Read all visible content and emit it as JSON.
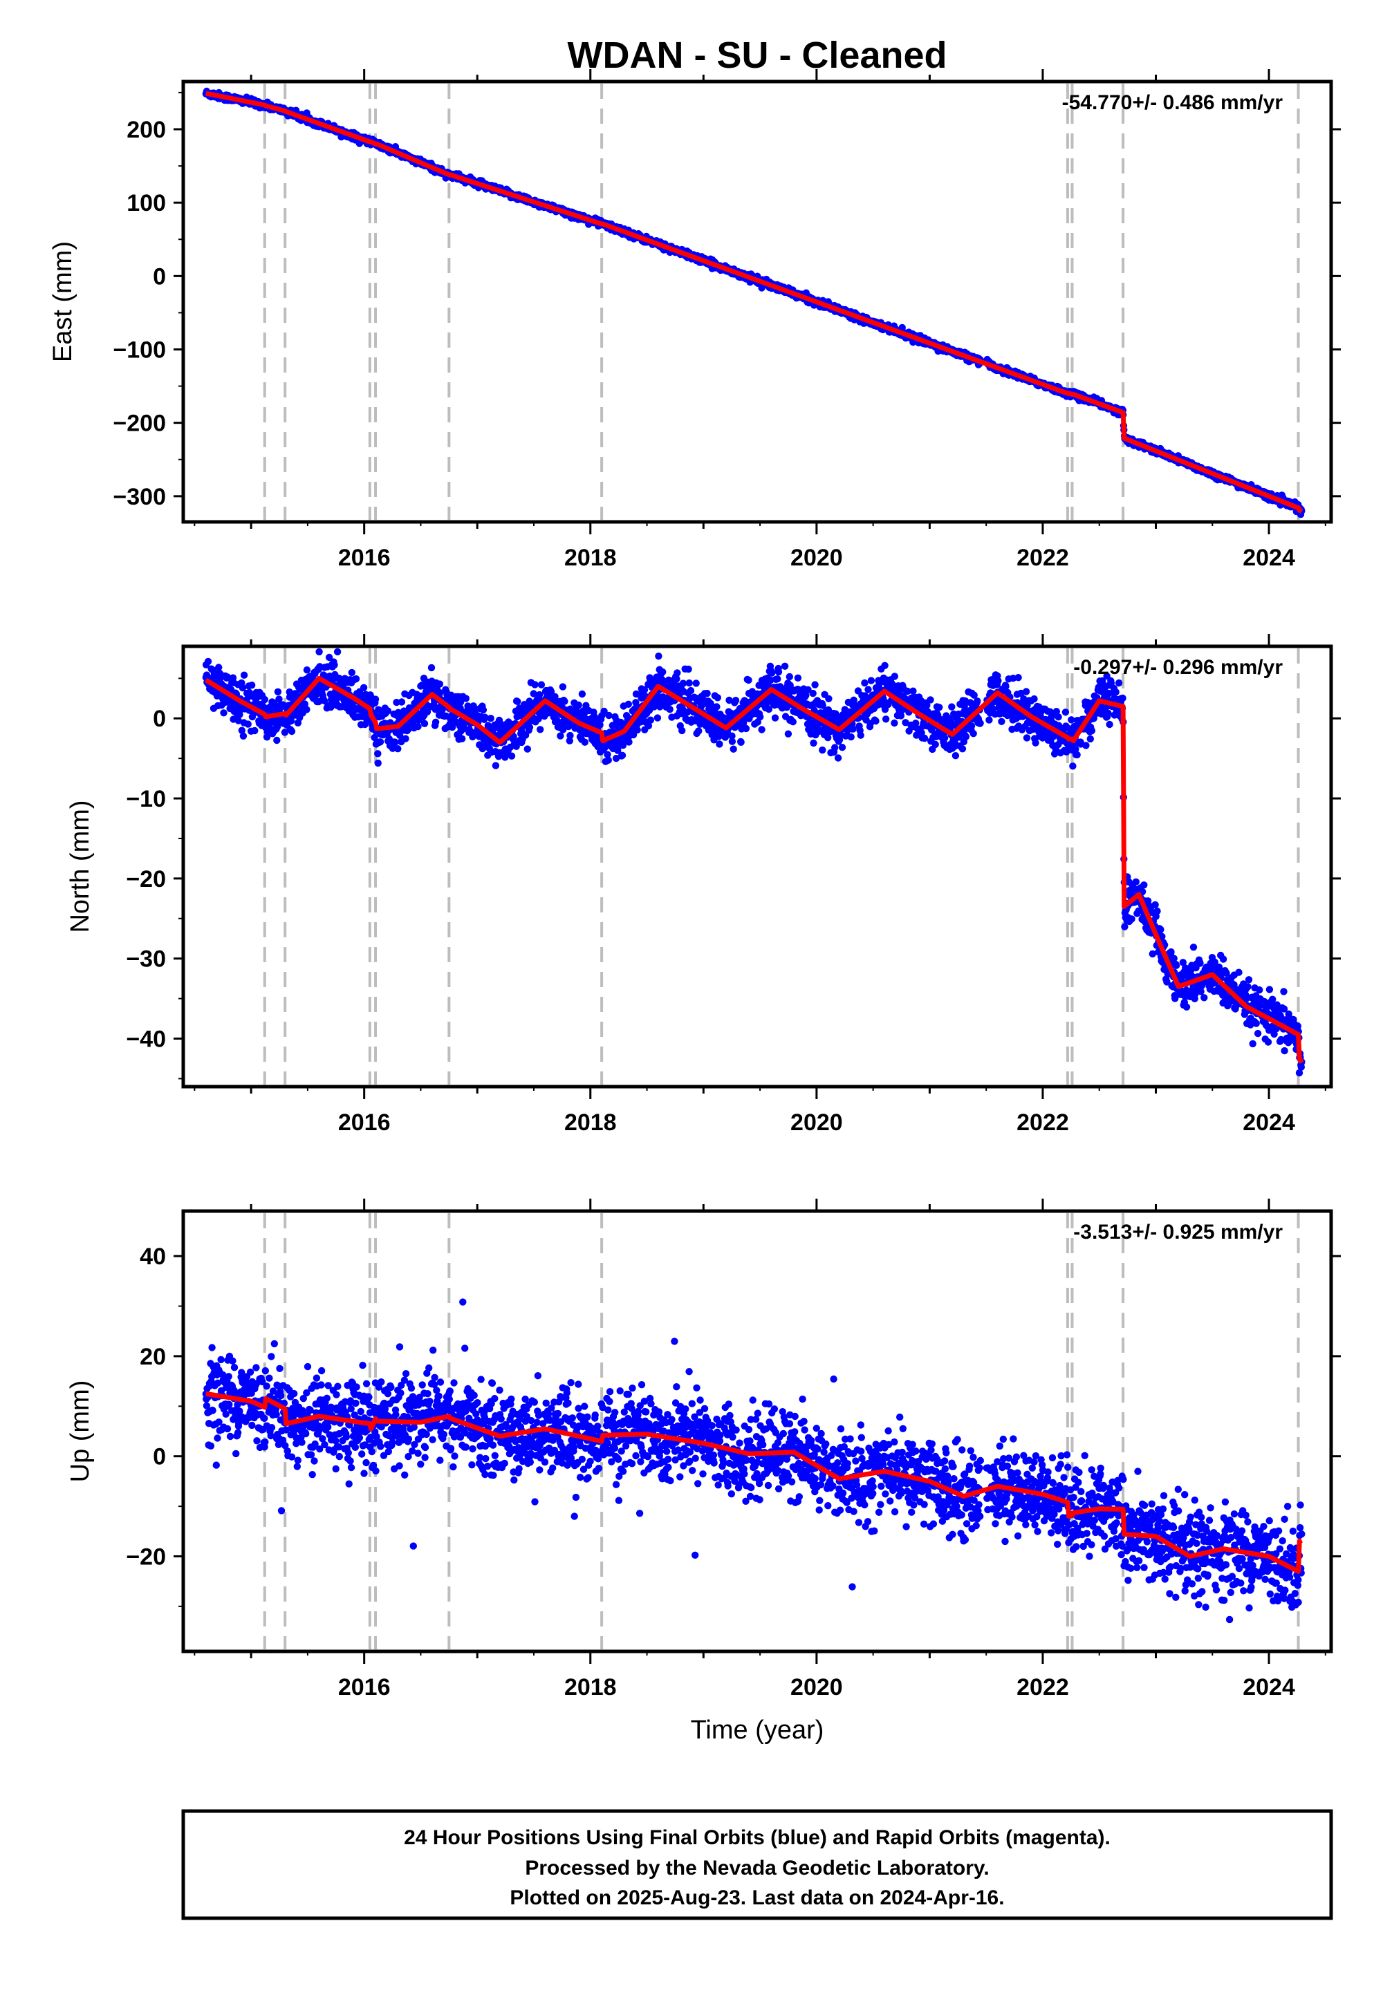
{
  "chart_data": {
    "type": "scatter",
    "title": "WDAN  - SU - Cleaned",
    "xlabel": "Time (year)",
    "xlim": [
      2014.4,
      2024.55
    ],
    "x_ticks": [
      "2016",
      "2018",
      "2020",
      "2022",
      "2024"
    ],
    "data_start": 2014.6,
    "data_end": 2024.29,
    "grid": false,
    "legend": "none",
    "point_color": "#0000ff",
    "fit_color": "#ff0000",
    "event_line_color": "#bdbdbd",
    "event_lines": [
      2015.12,
      2015.3,
      2016.05,
      2016.1,
      2016.75,
      2018.1,
      2022.22,
      2022.26,
      2022.71,
      2024.26
    ],
    "panels": [
      {
        "name": "east",
        "ylabel": "East (mm)",
        "ylim": [
          -335,
          265
        ],
        "y_ticks": [
          "200",
          "100",
          "0",
          "−100",
          "−200",
          "−300"
        ],
        "rate_label": "-54.770+/- 0.486 mm/yr",
        "scatter_sd": 2.2,
        "fit": {
          "x": [
            2014.6,
            2015.12,
            2015.13,
            2015.3,
            2015.31,
            2016.05,
            2016.06,
            2016.1,
            2016.11,
            2016.75,
            2016.76,
            2018.1,
            2018.11,
            2022.22,
            2022.23,
            2022.26,
            2022.27,
            2022.71,
            2022.72,
            2024.26,
            2024.27,
            2024.29
          ],
          "y": [
            249,
            233,
            232,
            225,
            224,
            183,
            183,
            180,
            180,
            138,
            138,
            71,
            71,
            -160,
            -160,
            -161,
            -161,
            -186,
            -221,
            -316,
            -319,
            -321
          ]
        }
      },
      {
        "name": "north",
        "ylabel": "North (mm)",
        "ylim": [
          -46,
          9
        ],
        "y_ticks": [
          "0",
          "−10",
          "−20",
          "−30",
          "−40"
        ],
        "rate_label": "-0.297+/- 0.296 mm/yr",
        "scatter_sd": 1.4,
        "fit": {
          "x": [
            2014.6,
            2014.9,
            2015.12,
            2015.13,
            2015.3,
            2015.31,
            2015.6,
            2015.9,
            2016.05,
            2016.06,
            2016.1,
            2016.11,
            2016.3,
            2016.6,
            2016.75,
            2016.76,
            2017.0,
            2017.2,
            2017.6,
            2017.9,
            2018.1,
            2018.11,
            2018.3,
            2018.6,
            2018.9,
            2019.2,
            2019.6,
            2019.9,
            2020.2,
            2020.6,
            2020.9,
            2021.2,
            2021.6,
            2021.9,
            2022.22,
            2022.23,
            2022.26,
            2022.27,
            2022.5,
            2022.71,
            2022.72,
            2022.85,
            2023.0,
            2023.2,
            2023.5,
            2023.8,
            2024.0,
            2024.26,
            2024.27,
            2024.29
          ],
          "y": [
            4.8,
            2.2,
            0.5,
            0.2,
            0.6,
            0.4,
            5.0,
            2.6,
            1.2,
            0.4,
            -0.5,
            -1.3,
            -1.0,
            3.0,
            1.4,
            1.2,
            -0.8,
            -3.0,
            2.2,
            -0.6,
            -1.8,
            -2.8,
            -1.6,
            4.0,
            1.4,
            -1.2,
            3.6,
            1.0,
            -1.4,
            3.4,
            0.6,
            -2.0,
            3.2,
            0.2,
            -2.4,
            -2.6,
            -2.6,
            -2.8,
            2.2,
            1.5,
            -23.5,
            -22.0,
            -27.0,
            -33.5,
            -32.0,
            -36.0,
            -37.5,
            -39.5,
            -42.5,
            -43.0
          ]
        }
      },
      {
        "name": "up",
        "ylabel": "Up (mm)",
        "ylim": [
          -39,
          49
        ],
        "y_ticks": [
          "40",
          "20",
          "0",
          "−20"
        ],
        "rate_label": "-3.513+/- 0.925 mm/yr",
        "scatter_sd": 4.2,
        "fit": {
          "x": [
            2014.6,
            2015.0,
            2015.12,
            2015.13,
            2015.3,
            2015.31,
            2015.6,
            2016.05,
            2016.06,
            2016.1,
            2016.11,
            2016.5,
            2016.75,
            2016.76,
            2017.2,
            2017.6,
            2018.1,
            2018.11,
            2018.5,
            2019.0,
            2019.4,
            2019.8,
            2020.2,
            2020.6,
            2021.0,
            2021.3,
            2021.6,
            2022.0,
            2022.22,
            2022.23,
            2022.26,
            2022.27,
            2022.5,
            2022.71,
            2022.72,
            2023.0,
            2023.3,
            2023.6,
            2024.0,
            2024.26,
            2024.27,
            2024.29
          ],
          "y": [
            12.5,
            11.0,
            9.8,
            11.5,
            9.5,
            6.5,
            8.0,
            6.5,
            5.5,
            7.5,
            7.0,
            6.8,
            8.0,
            7.6,
            4.0,
            5.5,
            3.0,
            4.2,
            4.4,
            2.6,
            0.5,
            0.8,
            -4.5,
            -3.0,
            -5.0,
            -8.0,
            -6.0,
            -7.6,
            -9.2,
            -12.0,
            -11.8,
            -11.3,
            -10.5,
            -10.6,
            -15.6,
            -16.0,
            -20.0,
            -18.5,
            -20.0,
            -23.0,
            -17.0,
            -16.8
          ]
        }
      }
    ],
    "footer": [
      "24 Hour Positions Using Final Orbits (blue) and Rapid Orbits (magenta).",
      "Processed by the Nevada Geodetic Laboratory.",
      "Plotted on 2025-Aug-23. Last data on 2024-Apr-16."
    ]
  }
}
